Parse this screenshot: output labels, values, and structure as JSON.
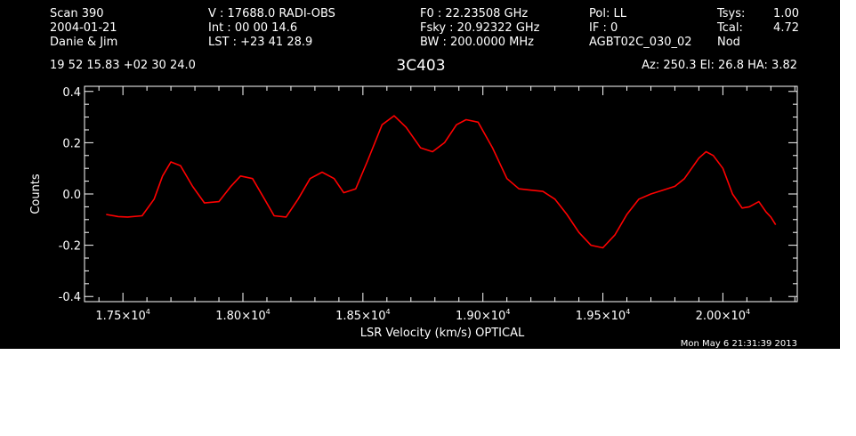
{
  "header": {
    "col1": [
      "Scan         390",
      "2004-01-21",
      "Danie & Jim"
    ],
    "col2": [
      "V   :    17688.0 RADI-OBS",
      "Int  :  00 00 14.6",
      "LST : +23 41 28.9"
    ],
    "col3": [
      "F0    :  22.23508 GHz",
      "Fsky :  20.92322 GHz",
      "BW   : 200.0000 MHz"
    ],
    "col4": [
      "Pol:    LL",
      "IF :      0",
      "AGBT02C_030_02"
    ],
    "col5": [
      "Tsys:",
      "Tcal:",
      "Nod"
    ],
    "col6": [
      "1.00",
      "4.72",
      ""
    ],
    "coords": "19 52 15.83  +02 30 24.0",
    "azelha": "Az: 250.3   El:  26.8   HA:  3.82",
    "timestamp": "Mon May  6 21:31:39 2013"
  },
  "colors": {
    "background": "#000000",
    "foreground": "#ffffff",
    "series": "#ff0000"
  },
  "chart_data": {
    "type": "line",
    "title": "3C403",
    "xlabel": "LSR Velocity (km/s) OPTICAL",
    "ylabel": "Counts",
    "xlim": [
      17340,
      20310
    ],
    "ylim": [
      -0.42,
      0.42
    ],
    "x_ticks": [
      {
        "value": 17500,
        "mantissa": "1.75",
        "exp": "4"
      },
      {
        "value": 18000,
        "mantissa": "1.80",
        "exp": "4"
      },
      {
        "value": 18500,
        "mantissa": "1.85",
        "exp": "4"
      },
      {
        "value": 19000,
        "mantissa": "1.90",
        "exp": "4"
      },
      {
        "value": 19500,
        "mantissa": "1.95",
        "exp": "4"
      },
      {
        "value": 20000,
        "mantissa": "2.00",
        "exp": "4"
      }
    ],
    "y_ticks": [
      {
        "value": 0.4,
        "label": "0.4"
      },
      {
        "value": 0.2,
        "label": "0.2"
      },
      {
        "value": 0.0,
        "label": "0.0"
      },
      {
        "value": -0.2,
        "label": "-0.2"
      },
      {
        "value": -0.4,
        "label": "-0.4"
      }
    ],
    "grid": false,
    "series": [
      {
        "color": "#ff0000",
        "x": [
          17430,
          17480,
          17520,
          17580,
          17630,
          17665,
          17700,
          17740,
          17790,
          17840,
          17900,
          17950,
          17990,
          18040,
          18090,
          18130,
          18180,
          18230,
          18280,
          18330,
          18380,
          18420,
          18470,
          18520,
          18580,
          18630,
          18680,
          18740,
          18790,
          18840,
          18890,
          18930,
          18980,
          19040,
          19100,
          19150,
          19200,
          19250,
          19300,
          19350,
          19400,
          19450,
          19500,
          19550,
          19600,
          19650,
          19700,
          19750,
          19800,
          19840,
          19870,
          19900,
          19930,
          19960,
          20000,
          20040,
          20080,
          20110,
          20150,
          20180,
          20200,
          20220
        ],
        "y": [
          -0.08,
          -0.088,
          -0.09,
          -0.085,
          -0.02,
          0.07,
          0.125,
          0.11,
          0.03,
          -0.035,
          -0.03,
          0.03,
          0.07,
          0.06,
          -0.02,
          -0.085,
          -0.09,
          -0.02,
          0.06,
          0.085,
          0.06,
          0.005,
          0.02,
          0.13,
          0.27,
          0.305,
          0.26,
          0.18,
          0.165,
          0.2,
          0.27,
          0.29,
          0.28,
          0.18,
          0.06,
          0.02,
          0.015,
          0.01,
          -0.02,
          -0.08,
          -0.15,
          -0.2,
          -0.21,
          -0.16,
          -0.08,
          -0.02,
          0.0,
          0.015,
          0.03,
          0.06,
          0.1,
          0.14,
          0.165,
          0.15,
          0.1,
          0.0,
          -0.055,
          -0.05,
          -0.03,
          -0.07,
          -0.09,
          -0.12
        ]
      }
    ]
  }
}
